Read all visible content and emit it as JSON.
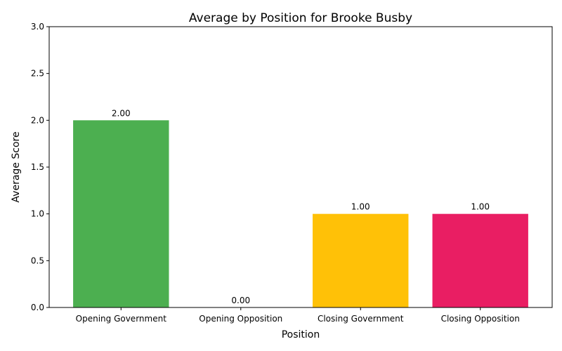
{
  "chart_data": {
    "type": "bar",
    "title": "Average by Position for Brooke Busby",
    "xlabel": "Position",
    "ylabel": "Average Score",
    "categories": [
      "Opening Government",
      "Opening Opposition",
      "Closing Government",
      "Closing Opposition"
    ],
    "values": [
      2.0,
      0.0,
      1.0,
      1.0
    ],
    "value_labels": [
      "2.00",
      "0.00",
      "1.00",
      "1.00"
    ],
    "colors": [
      "#4caf50",
      "#2196f3",
      "#ffc107",
      "#e91e63"
    ],
    "ylim": [
      0,
      3
    ],
    "yticks": [
      0.0,
      0.5,
      1.0,
      1.5,
      2.0,
      2.5,
      3.0
    ],
    "ytick_labels": [
      "0.0",
      "0.5",
      "1.0",
      "1.5",
      "2.0",
      "2.5",
      "3.0"
    ],
    "grid": false,
    "legend": "none"
  }
}
